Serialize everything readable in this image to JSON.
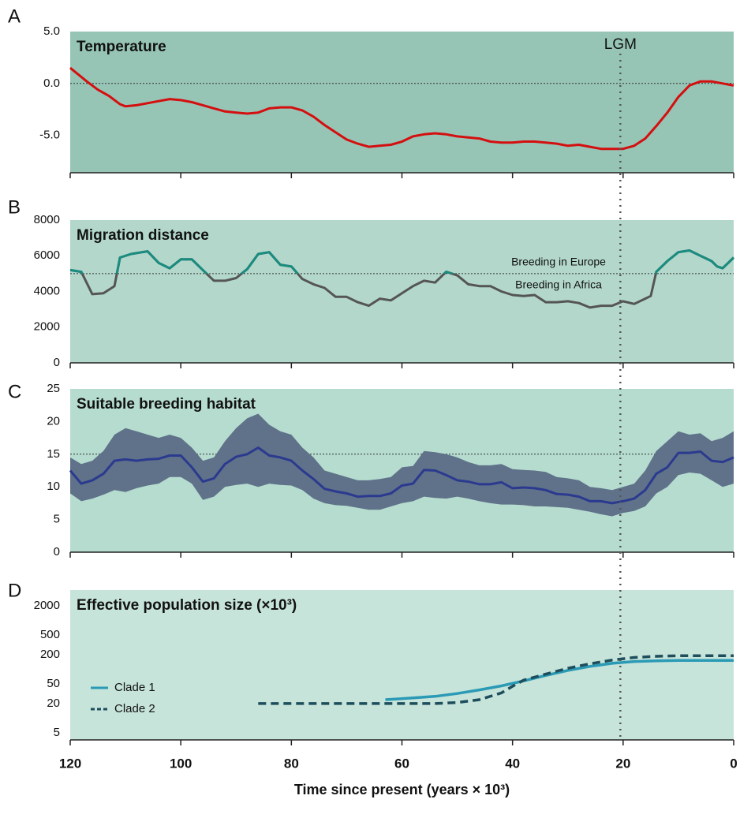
{
  "chart_data": [
    {
      "type": "line",
      "panel_label": "A",
      "title": "Temperature",
      "background": "#96c5b6",
      "x": [
        120,
        117,
        115,
        113,
        111,
        110,
        108,
        106,
        104,
        102,
        100,
        98,
        96,
        94,
        92,
        90,
        88,
        86,
        84,
        82,
        80,
        78,
        76,
        74,
        72,
        70,
        68,
        66,
        64,
        62,
        60,
        58,
        56,
        54,
        52,
        50,
        48,
        46,
        44,
        42,
        40,
        38,
        36,
        34,
        32,
        30,
        28,
        26,
        24,
        22,
        20,
        18,
        16,
        14,
        12,
        10,
        8,
        6,
        4,
        2,
        0
      ],
      "values": [
        1.5,
        0.2,
        -0.6,
        -1.2,
        -2.0,
        -2.2,
        -2.1,
        -1.9,
        -1.7,
        -1.5,
        -1.6,
        -1.8,
        -2.1,
        -2.4,
        -2.7,
        -2.8,
        -2.9,
        -2.8,
        -2.4,
        -2.3,
        -2.3,
        -2.6,
        -3.2,
        -4.0,
        -4.7,
        -5.4,
        -5.8,
        -6.1,
        -6.0,
        -5.9,
        -5.6,
        -5.1,
        -4.9,
        -4.8,
        -4.9,
        -5.1,
        -5.2,
        -5.3,
        -5.6,
        -5.7,
        -5.7,
        -5.6,
        -5.6,
        -5.7,
        -5.8,
        -6.0,
        -5.9,
        -6.1,
        -6.3,
        -6.3,
        -6.3,
        -6.0,
        -5.3,
        -4.1,
        -2.8,
        -1.3,
        -0.2,
        0.2,
        0.2,
        0.0,
        -0.2
      ],
      "color": "#d40f0f",
      "hline": 0,
      "vline": 20.5,
      "vline_label": "LGM",
      "xlim": [
        120,
        0
      ],
      "xticks": [
        120,
        100,
        80,
        60,
        40,
        20,
        0
      ],
      "ylim": [
        -8.6,
        5
      ],
      "yticks": [
        {
          "value": 5,
          "label": "5.0"
        },
        {
          "value": 0,
          "label": "0.0"
        },
        {
          "value": -5,
          "label": "-5.0"
        }
      ]
    },
    {
      "type": "line",
      "panel_label": "B",
      "title": "Migration distance",
      "background": "#b3d8cb",
      "x": [
        120,
        118,
        116,
        114,
        112,
        111,
        109,
        107,
        106,
        104,
        102,
        100,
        98,
        96,
        94,
        92,
        90,
        88,
        86,
        84,
        82,
        80,
        78,
        76,
        74,
        72,
        70,
        68,
        66,
        64,
        62,
        60,
        58,
        56,
        54,
        52,
        50,
        48,
        46,
        44,
        42,
        40,
        38,
        36,
        34,
        32,
        30,
        28,
        26,
        24,
        22,
        20,
        18,
        16,
        15,
        14,
        12,
        10,
        8,
        6,
        4,
        3,
        2,
        0
      ],
      "values": [
        5200,
        5100,
        3850,
        3900,
        4300,
        5900,
        6100,
        6200,
        6250,
        5600,
        5300,
        5800,
        5800,
        5200,
        4600,
        4600,
        4750,
        5250,
        6100,
        6200,
        5500,
        5400,
        4700,
        4400,
        4200,
        3700,
        3700,
        3400,
        3200,
        3600,
        3500,
        3900,
        4300,
        4600,
        4500,
        5100,
        4900,
        4400,
        4300,
        4300,
        4000,
        3800,
        3750,
        3800,
        3400,
        3400,
        3450,
        3350,
        3100,
        3200,
        3200,
        3450,
        3300,
        3600,
        3750,
        5100,
        5700,
        6200,
        6300,
        6000,
        5700,
        5400,
        5300,
        5900
      ],
      "color": "#555555",
      "above_color": "#1a8c80",
      "hline": 5000,
      "hline_labels": [
        "Breeding in Europe",
        "Breeding in Africa"
      ],
      "xlim": [
        120,
        0
      ],
      "xticks": [
        120,
        100,
        80,
        60,
        40,
        20,
        0
      ],
      "ylim": [
        0,
        8000
      ],
      "yticks": [
        0,
        2000,
        4000,
        6000,
        8000
      ]
    },
    {
      "type": "line",
      "panel_label": "C",
      "title": "Suitable breeding habitat",
      "background": "#b5dccf",
      "x": [
        120,
        118,
        116,
        114,
        112,
        110,
        108,
        106,
        104,
        102,
        100,
        98,
        96,
        94,
        92,
        90,
        88,
        86,
        84,
        82,
        80,
        78,
        76,
        74,
        72,
        70,
        68,
        66,
        64,
        62,
        60,
        58,
        56,
        54,
        52,
        50,
        48,
        46,
        44,
        42,
        40,
        38,
        36,
        34,
        32,
        30,
        28,
        26,
        24,
        22,
        20,
        18,
        16,
        14,
        12,
        10,
        8,
        6,
        4,
        2,
        0
      ],
      "values": [
        12.5,
        10.5,
        11,
        12,
        14,
        14.2,
        14,
        14.2,
        14.3,
        14.8,
        14.8,
        13,
        10.8,
        11.3,
        13.5,
        14.6,
        15,
        16,
        14.8,
        14.5,
        14,
        12.5,
        11.2,
        9.7,
        9.3,
        9,
        8.5,
        8.6,
        8.6,
        9,
        10.2,
        10.5,
        12.6,
        12.5,
        11.8,
        11,
        10.8,
        10.4,
        10.4,
        10.7,
        9.8,
        9.9,
        9.8,
        9.5,
        8.9,
        8.8,
        8.5,
        7.8,
        7.8,
        7.5,
        7.8,
        8.2,
        9.5,
        12,
        13,
        15.2,
        15.2,
        15.4,
        14,
        13.8,
        14.5
      ],
      "lower": [
        9,
        7.8,
        8.2,
        8.8,
        9.5,
        9.2,
        9.8,
        10.2,
        10.5,
        11.5,
        11.5,
        10.5,
        8,
        8.5,
        10,
        10.3,
        10.5,
        10,
        10.5,
        10.3,
        10.2,
        9.5,
        8.2,
        7.5,
        7.2,
        7.1,
        6.8,
        6.5,
        6.5,
        7,
        7.5,
        7.8,
        8.5,
        8.3,
        8.2,
        8.5,
        8.2,
        7.8,
        7.5,
        7.3,
        7.3,
        7.2,
        7,
        7,
        6.9,
        6.8,
        6.5,
        6.2,
        5.8,
        5.5,
        6,
        6.3,
        7,
        9,
        10,
        11.8,
        12.2,
        12,
        11,
        10,
        10.5
      ],
      "upper": [
        14.5,
        13.5,
        14,
        15.5,
        18,
        19,
        18.5,
        18,
        17.5,
        18,
        17.5,
        16,
        14,
        14.5,
        17,
        19,
        20.5,
        21.2,
        19.5,
        18.5,
        18,
        16,
        14.5,
        12.5,
        12,
        11.5,
        11,
        11,
        11.2,
        11.5,
        13,
        13.2,
        15.5,
        15.3,
        15,
        14.5,
        13.8,
        13.3,
        13.3,
        13.5,
        12.7,
        12.6,
        12.5,
        12.3,
        11.5,
        11.3,
        11,
        10,
        9.8,
        9.5,
        10,
        10.5,
        12.5,
        15.5,
        17,
        18.5,
        18,
        18.2,
        17,
        17.5,
        18.5
      ],
      "color": "#2b3a8f",
      "band_color": "#607289",
      "hline": 15,
      "xlim": [
        120,
        0
      ],
      "xticks": [
        120,
        100,
        80,
        60,
        40,
        20,
        0
      ],
      "ylim": [
        0,
        25
      ],
      "yticks": [
        0,
        5,
        10,
        15,
        20,
        25
      ]
    },
    {
      "type": "line",
      "panel_label": "D",
      "title": "Effective population size  (×10³)",
      "background": "#c6e4da",
      "series": [
        {
          "name": "Clade 1",
          "color": "#2a9ab5",
          "dash": false,
          "x": [
            63,
            58,
            54,
            50,
            46,
            42,
            38,
            34,
            30,
            26,
            22,
            18,
            14,
            10,
            4,
            0
          ],
          "values": [
            24,
            26,
            28,
            32,
            38,
            46,
            58,
            75,
            95,
            115,
            133,
            145,
            150,
            152,
            152,
            152
          ]
        },
        {
          "name": "Clade 2",
          "color": "#1e4d5c",
          "dash": true,
          "x": [
            86,
            80,
            70,
            60,
            54,
            50,
            46,
            42,
            40,
            38,
            34,
            30,
            26,
            22,
            18,
            14,
            10,
            5,
            0
          ],
          "values": [
            20,
            20,
            20,
            20,
            20,
            21,
            24,
            33,
            45,
            60,
            80,
            105,
            130,
            155,
            175,
            185,
            190,
            190,
            190
          ]
        }
      ],
      "legend": "left",
      "log_y": true,
      "xlim": [
        120,
        0
      ],
      "xticks": [
        120,
        100,
        80,
        60,
        40,
        20,
        0
      ],
      "xlabel": "Time since present (years × 10³)",
      "ylim": [
        3.6,
        4200
      ],
      "yticks": [
        5,
        20,
        50,
        200,
        500,
        2000
      ]
    }
  ]
}
